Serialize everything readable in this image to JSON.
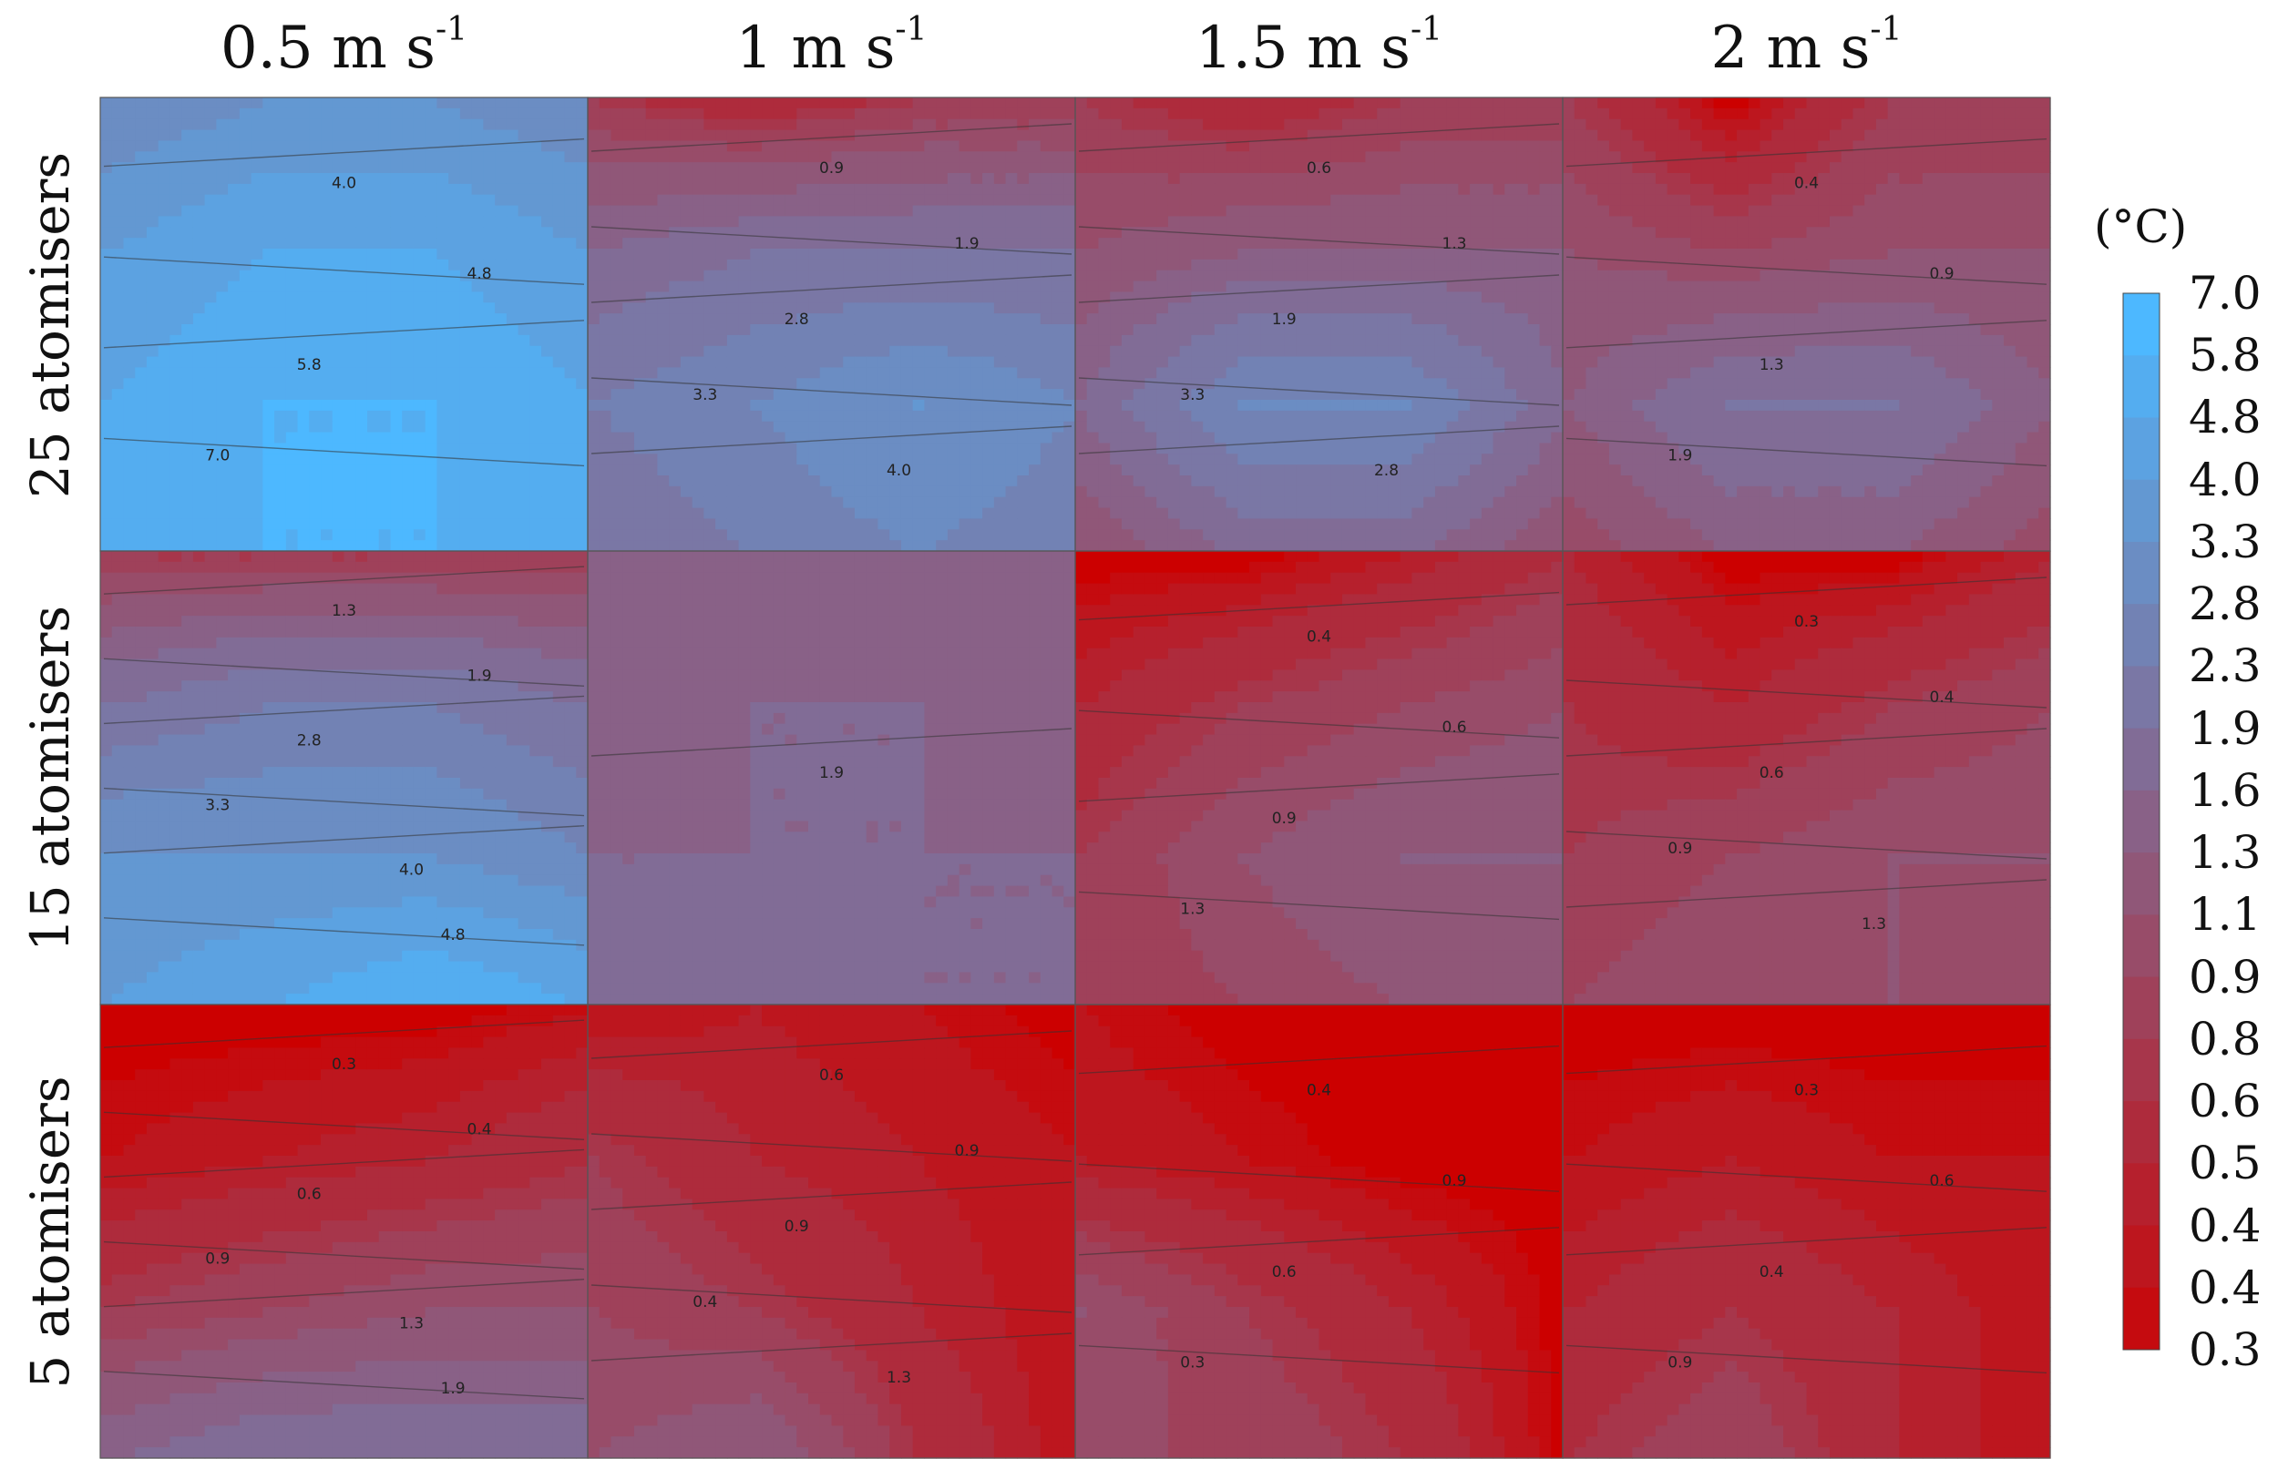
{
  "chart_data": {
    "type": "heatmap",
    "subtype": "filled-contour panel grid",
    "columns": [
      {
        "label": "0.5 m s",
        "sup": "-1"
      },
      {
        "label": "1 m s",
        "sup": "-1"
      },
      {
        "label": "1.5 m s",
        "sup": "-1"
      },
      {
        "label": "2 m s",
        "sup": "-1"
      }
    ],
    "rows": [
      "25 atomisers",
      "15 atomisers",
      "5 atomisers"
    ],
    "colorbar": {
      "unit": "(°C)",
      "ticks": [
        "7.0",
        "5.8",
        "4.8",
        "4.0",
        "3.3",
        "2.8",
        "2.3",
        "1.9",
        "1.6",
        "1.3",
        "1.1",
        "0.9",
        "0.8",
        "0.6",
        "0.5",
        "0.4",
        "0.4",
        "0.3"
      ],
      "levels": [
        7.0,
        5.8,
        4.8,
        4.0,
        3.3,
        2.8,
        2.3,
        1.9,
        1.6,
        1.3,
        1.1,
        0.9,
        0.8,
        0.6,
        0.5,
        0.4,
        0.35,
        0.3
      ],
      "low_color": "#cc0000",
      "high_color": "#4db8ff"
    },
    "grid_values": {
      "note_rows_top_to_bottom_cols_left_to_right": true,
      "panels": [
        [
          [
            [
              3.3,
              4.0,
              4.0,
              3.3
            ],
            [
              4.8,
              5.8,
              5.8,
              4.8
            ],
            [
              5.8,
              7.0,
              7.0,
              5.8
            ],
            [
              7.0,
              7.0,
              7.0,
              7.0
            ]
          ],
          [
            [
              0.9,
              0.6,
              0.9,
              0.9
            ],
            [
              1.9,
              2.3,
              2.3,
              2.3
            ],
            [
              2.8,
              3.3,
              4.0,
              3.3
            ],
            [
              2.3,
              2.8,
              3.3,
              2.8
            ]
          ],
          [
            [
              0.9,
              0.6,
              0.9,
              0.9
            ],
            [
              1.3,
              1.6,
              1.6,
              1.6
            ],
            [
              1.9,
              3.3,
              3.3,
              1.9
            ],
            [
              1.3,
              1.9,
              1.9,
              1.3
            ]
          ],
          [
            [
              0.9,
              0.3,
              0.9,
              0.9
            ],
            [
              1.3,
              1.1,
              1.3,
              1.3
            ],
            [
              1.6,
              2.3,
              2.3,
              1.6
            ],
            [
              1.1,
              1.6,
              1.6,
              1.1
            ]
          ]
        ],
        [
          [
            [
              0.9,
              0.9,
              0.9,
              0.9
            ],
            [
              2.3,
              2.8,
              2.8,
              2.3
            ],
            [
              4.0,
              4.0,
              4.0,
              3.3
            ],
            [
              4.8,
              5.8,
              7.0,
              5.8
            ]
          ],
          [
            [
              1.6,
              1.6,
              1.6,
              1.6
            ],
            [
              1.6,
              1.9,
              1.9,
              1.6
            ],
            [
              1.9,
              1.9,
              1.9,
              1.9
            ],
            [
              1.9,
              2.3,
              1.9,
              1.9
            ]
          ],
          [
            [
              0.3,
              0.3,
              0.5,
              0.8
            ],
            [
              0.6,
              0.9,
              1.1,
              1.3
            ],
            [
              0.9,
              1.3,
              1.6,
              1.6
            ],
            [
              0.9,
              1.1,
              1.3,
              1.3
            ]
          ],
          [
            [
              0.6,
              0.3,
              0.3,
              0.6
            ],
            [
              0.8,
              0.6,
              0.9,
              1.1
            ],
            [
              0.9,
              1.1,
              1.3,
              1.3
            ],
            [
              1.1,
              1.3,
              1.3,
              1.1
            ]
          ]
        ],
        [
          [
            [
              0.3,
              0.3,
              0.3,
              0.4
            ],
            [
              0.4,
              0.5,
              0.6,
              0.8
            ],
            [
              0.9,
              1.1,
              1.3,
              1.3
            ],
            [
              1.9,
              2.3,
              2.3,
              2.3
            ]
          ],
          [
            [
              0.4,
              0.5,
              0.4,
              0.3
            ],
            [
              0.9,
              0.6,
              0.5,
              0.4
            ],
            [
              1.1,
              0.9,
              0.6,
              0.4
            ],
            [
              1.3,
              1.6,
              0.8,
              0.4
            ]
          ],
          [
            [
              0.4,
              0.3,
              0.3,
              0.3
            ],
            [
              0.5,
              0.4,
              0.3,
              0.3
            ],
            [
              1.3,
              0.9,
              0.6,
              0.3
            ],
            [
              1.1,
              1.1,
              0.8,
              0.3
            ]
          ],
          [
            [
              0.3,
              0.3,
              0.3,
              0.3
            ],
            [
              0.4,
              0.5,
              0.4,
              0.4
            ],
            [
              0.6,
              0.8,
              0.6,
              0.4
            ],
            [
              0.8,
              1.1,
              0.6,
              0.4
            ]
          ]
        ]
      ]
    },
    "contour_labels": [
      [
        [
          "4.0",
          "4.8",
          "5.8",
          "7.0"
        ],
        [
          "0.9",
          "1.9",
          "2.8",
          "3.3",
          "4.0"
        ],
        [
          "0.6",
          "1.3",
          "1.9",
          "3.3",
          "2.8"
        ],
        [
          "0.4",
          "0.9",
          "1.3",
          "1.9"
        ]
      ],
      [
        [
          "1.3",
          "1.9",
          "2.8",
          "3.3",
          "4.0",
          "4.8"
        ],
        [
          "1.9"
        ],
        [
          "0.4",
          "0.6",
          "0.9",
          "1.3"
        ],
        [
          "0.3",
          "0.4",
          "0.6",
          "0.9",
          "1.3"
        ]
      ],
      [
        [
          "0.3",
          "0.4",
          "0.6",
          "0.9",
          "1.3",
          "1.9"
        ],
        [
          "0.6",
          "0.9",
          "0.9",
          "0.4",
          "1.3"
        ],
        [
          "0.4",
          "0.9",
          "0.6",
          "0.3"
        ],
        [
          "0.3",
          "0.6",
          "0.4",
          "0.9"
        ]
      ]
    ]
  }
}
